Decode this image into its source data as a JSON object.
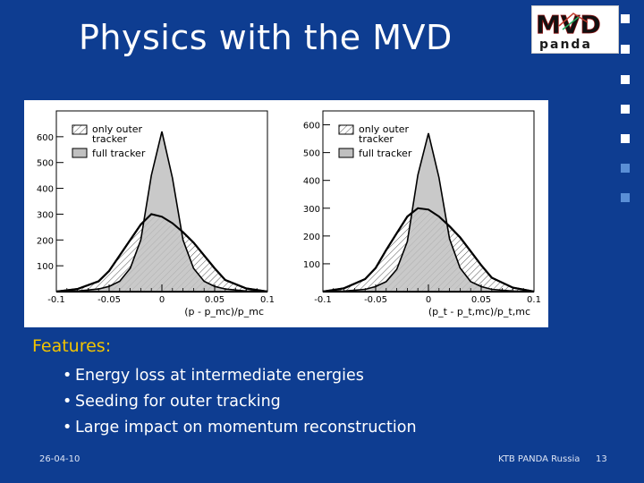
{
  "slide": {
    "title": "Physics with the MVD",
    "logo": {
      "top": "MVD",
      "bottom": "panda"
    },
    "features_heading": "Features:",
    "bullets": [
      "Energy loss at intermediate energies",
      "Seeding for outer tracking",
      "Large impact on momentum reconstruction"
    ],
    "footer_date": "26-04-10",
    "footer_event": "KTB PANDA Russia",
    "page_number": "13",
    "colors": {
      "background": "#0e3d91",
      "heading": "#f2c400",
      "square_dark": "#ffffff",
      "square_light": "#5a8fd6"
    }
  },
  "chart_data": [
    {
      "type": "area",
      "xlabel": "(p - p_mc)/p_mc",
      "xlim": [
        -0.1,
        0.1
      ],
      "ylim": [
        0,
        700
      ],
      "x_ticks": [
        "-0.1",
        "-0.05",
        "0",
        "0.05",
        "0.1"
      ],
      "y_ticks": [
        "100",
        "200",
        "300",
        "400",
        "500",
        "600"
      ],
      "legend": [
        "only outer tracker",
        "full tracker"
      ],
      "x": [
        -0.1,
        -0.08,
        -0.06,
        -0.05,
        -0.04,
        -0.03,
        -0.02,
        -0.01,
        0,
        0.01,
        0.02,
        0.03,
        0.04,
        0.05,
        0.06,
        0.08,
        0.1
      ],
      "series": [
        {
          "name": "only outer tracker",
          "values": [
            0,
            10,
            40,
            80,
            140,
            200,
            260,
            300,
            290,
            265,
            230,
            190,
            140,
            90,
            45,
            12,
            0
          ]
        },
        {
          "name": "full tracker",
          "values": [
            0,
            2,
            10,
            20,
            40,
            90,
            200,
            450,
            620,
            440,
            200,
            90,
            40,
            20,
            10,
            2,
            0
          ]
        }
      ]
    },
    {
      "type": "area",
      "xlabel": "(p_t - p_t,mc)/p_t,mc",
      "xlim": [
        -0.1,
        0.1
      ],
      "ylim": [
        0,
        650
      ],
      "x_ticks": [
        "-0.1",
        "-0.05",
        "0",
        "0.05",
        "0.1"
      ],
      "y_ticks": [
        "100",
        "200",
        "300",
        "400",
        "500",
        "600"
      ],
      "legend": [
        "only outer tracker",
        "full tracker"
      ],
      "x": [
        -0.1,
        -0.08,
        -0.06,
        -0.05,
        -0.04,
        -0.03,
        -0.02,
        -0.01,
        0,
        0.01,
        0.02,
        0.03,
        0.04,
        0.05,
        0.06,
        0.08,
        0.1
      ],
      "series": [
        {
          "name": "only outer tracker",
          "values": [
            0,
            12,
            45,
            85,
            150,
            210,
            270,
            300,
            295,
            270,
            235,
            195,
            145,
            95,
            50,
            14,
            0
          ]
        },
        {
          "name": "full tracker",
          "values": [
            0,
            2,
            8,
            18,
            36,
            80,
            180,
            420,
            570,
            410,
            190,
            85,
            36,
            18,
            8,
            2,
            0
          ]
        }
      ]
    }
  ]
}
